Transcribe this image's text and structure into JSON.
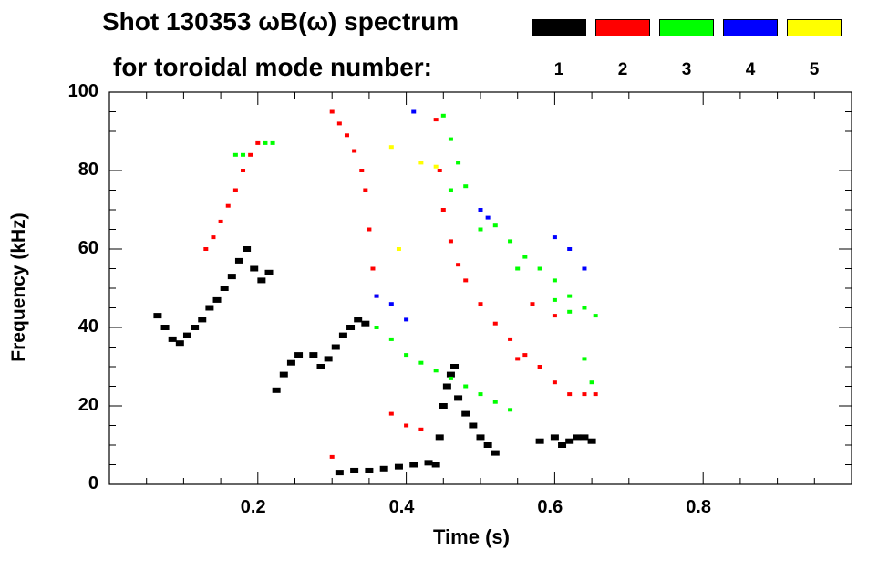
{
  "title_line1": "Shot 130353 ωB(ω) spectrum",
  "title_line2": "for toroidal mode number:",
  "legend": [
    {
      "label": "1",
      "color": "#000000"
    },
    {
      "label": "2",
      "color": "#ff0000"
    },
    {
      "label": "3",
      "color": "#00ff00"
    },
    {
      "label": "4",
      "color": "#0000ff"
    },
    {
      "label": "5",
      "color": "#ffff00"
    }
  ],
  "chart_data": {
    "type": "scatter",
    "xlabel": "Time (s)",
    "ylabel": "Frequency (kHz)",
    "xlim": [
      0.0,
      1.0
    ],
    "ylim": [
      0,
      100
    ],
    "x_ticks": [
      "0.2",
      "0.4",
      "0.6",
      "0.8"
    ],
    "x_tick_values": [
      0.2,
      0.4,
      0.6,
      0.8
    ],
    "y_ticks": [
      "0",
      "20",
      "40",
      "60",
      "80",
      "100"
    ],
    "y_tick_values": [
      0,
      20,
      40,
      60,
      80,
      100
    ],
    "grid": false,
    "legend_position": "top-right",
    "series": [
      {
        "name": "1",
        "color": "#000000",
        "points": [
          [
            0.065,
            43
          ],
          [
            0.075,
            40
          ],
          [
            0.085,
            37
          ],
          [
            0.095,
            36
          ],
          [
            0.105,
            38
          ],
          [
            0.115,
            40
          ],
          [
            0.125,
            42
          ],
          [
            0.135,
            45
          ],
          [
            0.145,
            47
          ],
          [
            0.155,
            50
          ],
          [
            0.165,
            53
          ],
          [
            0.175,
            57
          ],
          [
            0.185,
            60
          ],
          [
            0.195,
            55
          ],
          [
            0.205,
            52
          ],
          [
            0.215,
            54
          ],
          [
            0.225,
            24
          ],
          [
            0.235,
            28
          ],
          [
            0.245,
            31
          ],
          [
            0.255,
            33
          ],
          [
            0.275,
            33
          ],
          [
            0.285,
            30
          ],
          [
            0.295,
            32
          ],
          [
            0.305,
            35
          ],
          [
            0.315,
            38
          ],
          [
            0.325,
            40
          ],
          [
            0.335,
            42
          ],
          [
            0.345,
            41
          ],
          [
            0.31,
            3
          ],
          [
            0.33,
            3.5
          ],
          [
            0.35,
            3.5
          ],
          [
            0.37,
            4
          ],
          [
            0.39,
            4.5
          ],
          [
            0.41,
            5
          ],
          [
            0.43,
            5.5
          ],
          [
            0.44,
            5
          ],
          [
            0.445,
            12
          ],
          [
            0.45,
            20
          ],
          [
            0.455,
            25
          ],
          [
            0.46,
            28
          ],
          [
            0.465,
            30
          ],
          [
            0.47,
            22
          ],
          [
            0.48,
            18
          ],
          [
            0.49,
            15
          ],
          [
            0.5,
            12
          ],
          [
            0.51,
            10
          ],
          [
            0.52,
            8
          ],
          [
            0.61,
            10
          ],
          [
            0.62,
            11
          ],
          [
            0.63,
            12
          ],
          [
            0.64,
            12
          ],
          [
            0.65,
            11
          ],
          [
            0.58,
            11
          ],
          [
            0.6,
            12
          ]
        ]
      },
      {
        "name": "2",
        "color": "#ff0000",
        "points": [
          [
            0.13,
            60
          ],
          [
            0.14,
            63
          ],
          [
            0.15,
            67
          ],
          [
            0.16,
            71
          ],
          [
            0.17,
            75
          ],
          [
            0.18,
            80
          ],
          [
            0.19,
            84
          ],
          [
            0.2,
            87
          ],
          [
            0.3,
            95
          ],
          [
            0.31,
            92
          ],
          [
            0.32,
            89
          ],
          [
            0.33,
            85
          ],
          [
            0.34,
            80
          ],
          [
            0.345,
            75
          ],
          [
            0.35,
            65
          ],
          [
            0.355,
            55
          ],
          [
            0.36,
            48
          ],
          [
            0.44,
            93
          ],
          [
            0.445,
            80
          ],
          [
            0.45,
            70
          ],
          [
            0.46,
            62
          ],
          [
            0.47,
            56
          ],
          [
            0.48,
            52
          ],
          [
            0.5,
            46
          ],
          [
            0.52,
            41
          ],
          [
            0.54,
            37
          ],
          [
            0.56,
            33
          ],
          [
            0.58,
            30
          ],
          [
            0.6,
            26
          ],
          [
            0.62,
            23
          ],
          [
            0.64,
            23
          ],
          [
            0.655,
            23
          ],
          [
            0.3,
            7
          ],
          [
            0.38,
            18
          ],
          [
            0.4,
            15
          ],
          [
            0.42,
            14
          ],
          [
            0.55,
            32
          ],
          [
            0.57,
            46
          ],
          [
            0.6,
            43
          ]
        ]
      },
      {
        "name": "3",
        "color": "#00ff00",
        "points": [
          [
            0.17,
            84
          ],
          [
            0.18,
            84
          ],
          [
            0.21,
            87
          ],
          [
            0.22,
            87
          ],
          [
            0.36,
            40
          ],
          [
            0.38,
            37
          ],
          [
            0.4,
            33
          ],
          [
            0.42,
            31
          ],
          [
            0.44,
            29
          ],
          [
            0.46,
            27
          ],
          [
            0.48,
            25
          ],
          [
            0.5,
            23
          ],
          [
            0.52,
            21
          ],
          [
            0.54,
            19
          ],
          [
            0.45,
            94
          ],
          [
            0.46,
            88
          ],
          [
            0.47,
            82
          ],
          [
            0.48,
            76
          ],
          [
            0.5,
            70
          ],
          [
            0.52,
            66
          ],
          [
            0.54,
            62
          ],
          [
            0.56,
            58
          ],
          [
            0.58,
            55
          ],
          [
            0.6,
            52
          ],
          [
            0.62,
            48
          ],
          [
            0.64,
            45
          ],
          [
            0.655,
            43
          ],
          [
            0.46,
            75
          ],
          [
            0.5,
            65
          ],
          [
            0.55,
            55
          ],
          [
            0.6,
            47
          ],
          [
            0.62,
            44
          ],
          [
            0.64,
            32
          ],
          [
            0.65,
            26
          ]
        ]
      },
      {
        "name": "4",
        "color": "#0000ff",
        "points": [
          [
            0.36,
            48
          ],
          [
            0.38,
            46
          ],
          [
            0.4,
            42
          ],
          [
            0.41,
            95
          ],
          [
            0.5,
            70
          ],
          [
            0.51,
            68
          ],
          [
            0.6,
            63
          ],
          [
            0.62,
            60
          ],
          [
            0.64,
            55
          ]
        ]
      },
      {
        "name": "5",
        "color": "#ffff00",
        "points": [
          [
            0.38,
            86
          ],
          [
            0.39,
            60
          ],
          [
            0.42,
            82
          ],
          [
            0.44,
            81
          ]
        ]
      }
    ]
  }
}
